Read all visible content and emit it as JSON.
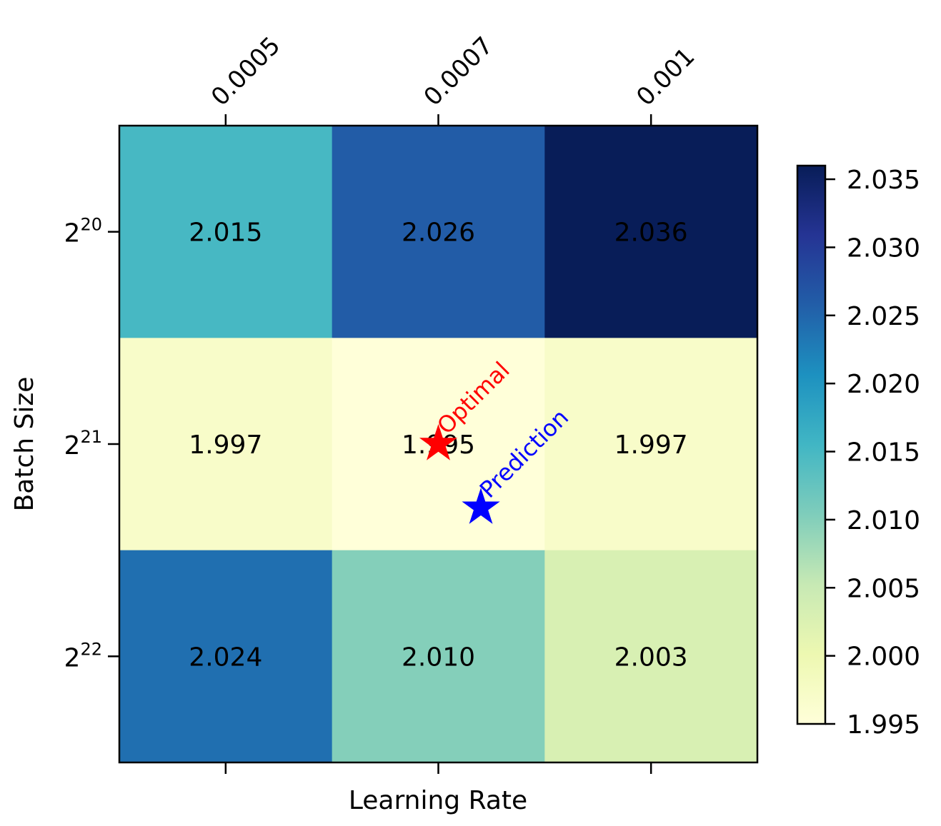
{
  "chart_data": {
    "type": "heatmap",
    "xlabel": "Learning Rate",
    "ylabel": "Batch Size",
    "x_categories": [
      "0.0005",
      "0.0007",
      "0.001"
    ],
    "y_categories": [
      {
        "base": "2",
        "exp": "20"
      },
      {
        "base": "2",
        "exp": "21"
      },
      {
        "base": "2",
        "exp": "22"
      }
    ],
    "values": [
      [
        2.015,
        2.026,
        2.036
      ],
      [
        1.997,
        1.995,
        1.997
      ],
      [
        2.024,
        2.01,
        2.003
      ]
    ],
    "cell_labels": [
      [
        "2.015",
        "2.026",
        "2.036"
      ],
      [
        "1.997",
        "1.995",
        "1.997"
      ],
      [
        "2.024",
        "2.010",
        "2.003"
      ]
    ],
    "colorbar": {
      "min": 1.995,
      "max": 2.036,
      "ticks": [
        "1.995",
        "2.000",
        "2.005",
        "2.010",
        "2.015",
        "2.020",
        "2.025",
        "2.030",
        "2.035"
      ],
      "colormap": "YlGnBu"
    },
    "markers": [
      {
        "label": "Optimal",
        "color": "#ff0000",
        "x_index": 1.0,
        "y_index": 1.0
      },
      {
        "label": "Prediction",
        "color": "#0000ff",
        "x_index": 1.2,
        "y_index": 1.3
      }
    ],
    "x_tick_position": "top",
    "grid": false
  }
}
